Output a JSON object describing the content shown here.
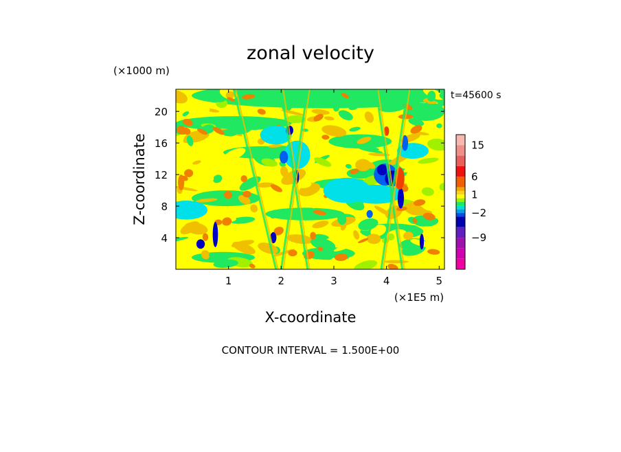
{
  "chart_data": {
    "type": "heatmap",
    "title": "zonal velocity",
    "xlabel": "X-coordinate",
    "ylabel": "Z-coordinate",
    "x_units": "(×1E5 m)",
    "y_units": "(×1000 m)",
    "time_label": "t=45600 s",
    "footer": "CONTOUR INTERVAL = 1.500E+00",
    "xlim": [
      0,
      5.1
    ],
    "ylim": [
      0,
      22.8
    ],
    "x_ticks": [
      "1",
      "2",
      "3",
      "4",
      "5"
    ],
    "x_tick_values": [
      1,
      2,
      3,
      4,
      5
    ],
    "y_ticks": [
      "4",
      "8",
      "12",
      "16",
      "20"
    ],
    "y_tick_values": [
      4,
      8,
      12,
      16,
      20
    ],
    "colorbar": {
      "labels": [
        "15",
        "6",
        "1",
        "−2",
        "−9"
      ],
      "label_values": [
        15,
        6,
        1,
        -2,
        -9
      ],
      "levels": [
        {
          "min": 15,
          "max": 18,
          "color": "#f6b8b0"
        },
        {
          "min": 12,
          "max": 15,
          "color": "#f08e8a"
        },
        {
          "min": 9,
          "max": 12,
          "color": "#e8605c"
        },
        {
          "min": 6,
          "max": 9,
          "color": "#f01010"
        },
        {
          "min": 3,
          "max": 6,
          "color": "#f06000"
        },
        {
          "min": 1.5,
          "max": 3,
          "color": "#f0a800"
        },
        {
          "min": 1,
          "max": 1.5,
          "color": "#ffd020"
        },
        {
          "min": 0.5,
          "max": 1,
          "color": "#ffff00"
        },
        {
          "min": 0,
          "max": 0.5,
          "color": "#a0f000"
        },
        {
          "min": -0.5,
          "max": 0,
          "color": "#20e860"
        },
        {
          "min": -1,
          "max": -0.5,
          "color": "#00e0d0"
        },
        {
          "min": -2,
          "max": -1,
          "color": "#00a0f0"
        },
        {
          "min": -3,
          "max": -2,
          "color": "#0050e0"
        },
        {
          "min": -6,
          "max": -3,
          "color": "#0000b0"
        },
        {
          "min": -9,
          "max": -6,
          "color": "#6020c0"
        },
        {
          "min": -12,
          "max": -9,
          "color": "#a010b0"
        },
        {
          "min": -15,
          "max": -12,
          "color": "#d000b0"
        },
        {
          "min": -18,
          "max": -15,
          "color": "#f000a0"
        }
      ]
    },
    "field_colors": {
      "pos3": "#f08000",
      "pos2": "#f0c000",
      "pos1": "#ffff00",
      "zero": "#a0f000",
      "neg1": "#20e860",
      "neg2": "#00e0e8",
      "neg3": "#0060f0",
      "neg4": "#0000c0"
    }
  }
}
